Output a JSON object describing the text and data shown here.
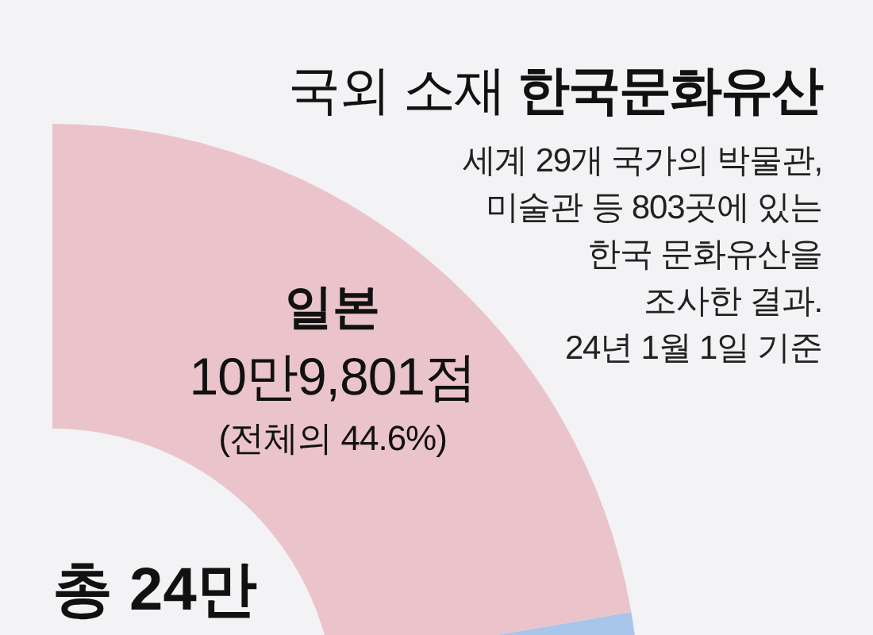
{
  "chart_data": {
    "type": "donut",
    "title": "국외 소재 한국문화유산",
    "subtitle": "세계 29개 국가의 박물관,\n미술관 등 803곳에 있는\n한국 문화유산을\n조사한 결과.\n24년 1월 1일 기준",
    "categories": [
      "일본",
      null
    ],
    "values": [
      44.6,
      55.4
    ],
    "colors": [
      "#ebc4cb",
      "#a8c6ea"
    ],
    "value_labels": [
      "10만9,801점\n(전체의 44.6%)",
      null
    ],
    "annotations": [
      "총 24만"
    ]
  }
}
